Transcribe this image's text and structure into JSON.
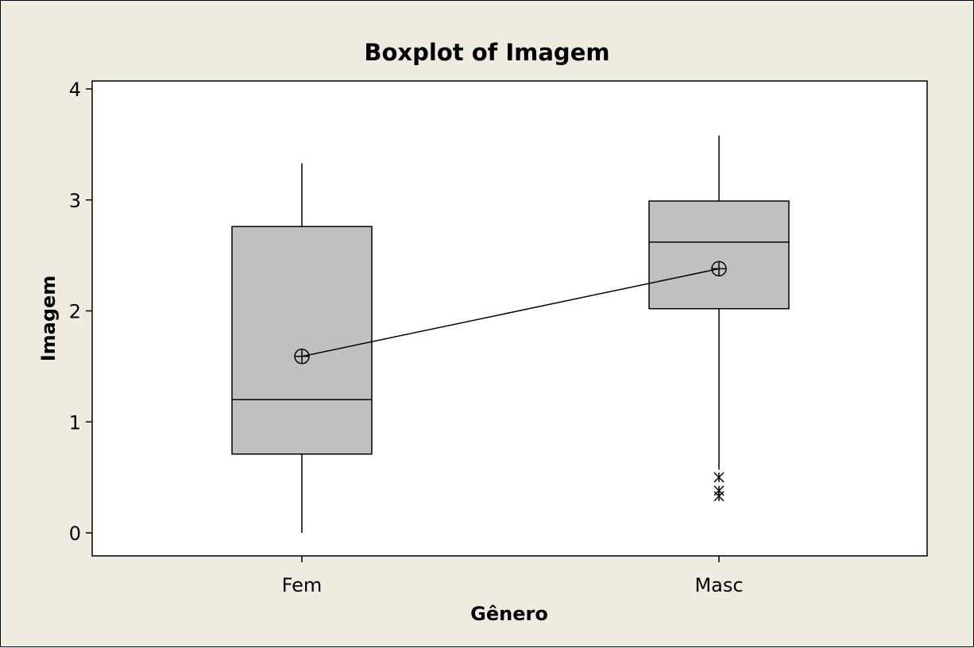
{
  "chart_data": {
    "type": "boxplot",
    "title": "Boxplot of Imagem",
    "xlabel": "Gênero",
    "ylabel": "Imagem",
    "ylim": [
      -0.2,
      4.1
    ],
    "yticks": [
      "0",
      "1",
      "2",
      "3",
      "4"
    ],
    "categories": [
      "Fem",
      "Masc"
    ],
    "boxes": [
      {
        "category": "Fem",
        "whisker_low": 0.0,
        "q1": 0.71,
        "median": 1.2,
        "q3": 2.76,
        "whisker_high": 3.33,
        "mean": 1.59,
        "outliers": []
      },
      {
        "category": "Masc",
        "whisker_low": 0.57,
        "q1": 2.02,
        "median": 2.62,
        "q3": 2.99,
        "whisker_high": 3.58,
        "mean": 2.38,
        "outliers": [
          0.5,
          0.38,
          0.33
        ]
      }
    ],
    "mean_connect_line": true,
    "grid": false,
    "legend": "none",
    "colors": {
      "box_fill": "#c0c0c0",
      "plot_bg": "#ffffff",
      "frame_bg": "#efebe0",
      "stroke": "#000000"
    }
  }
}
